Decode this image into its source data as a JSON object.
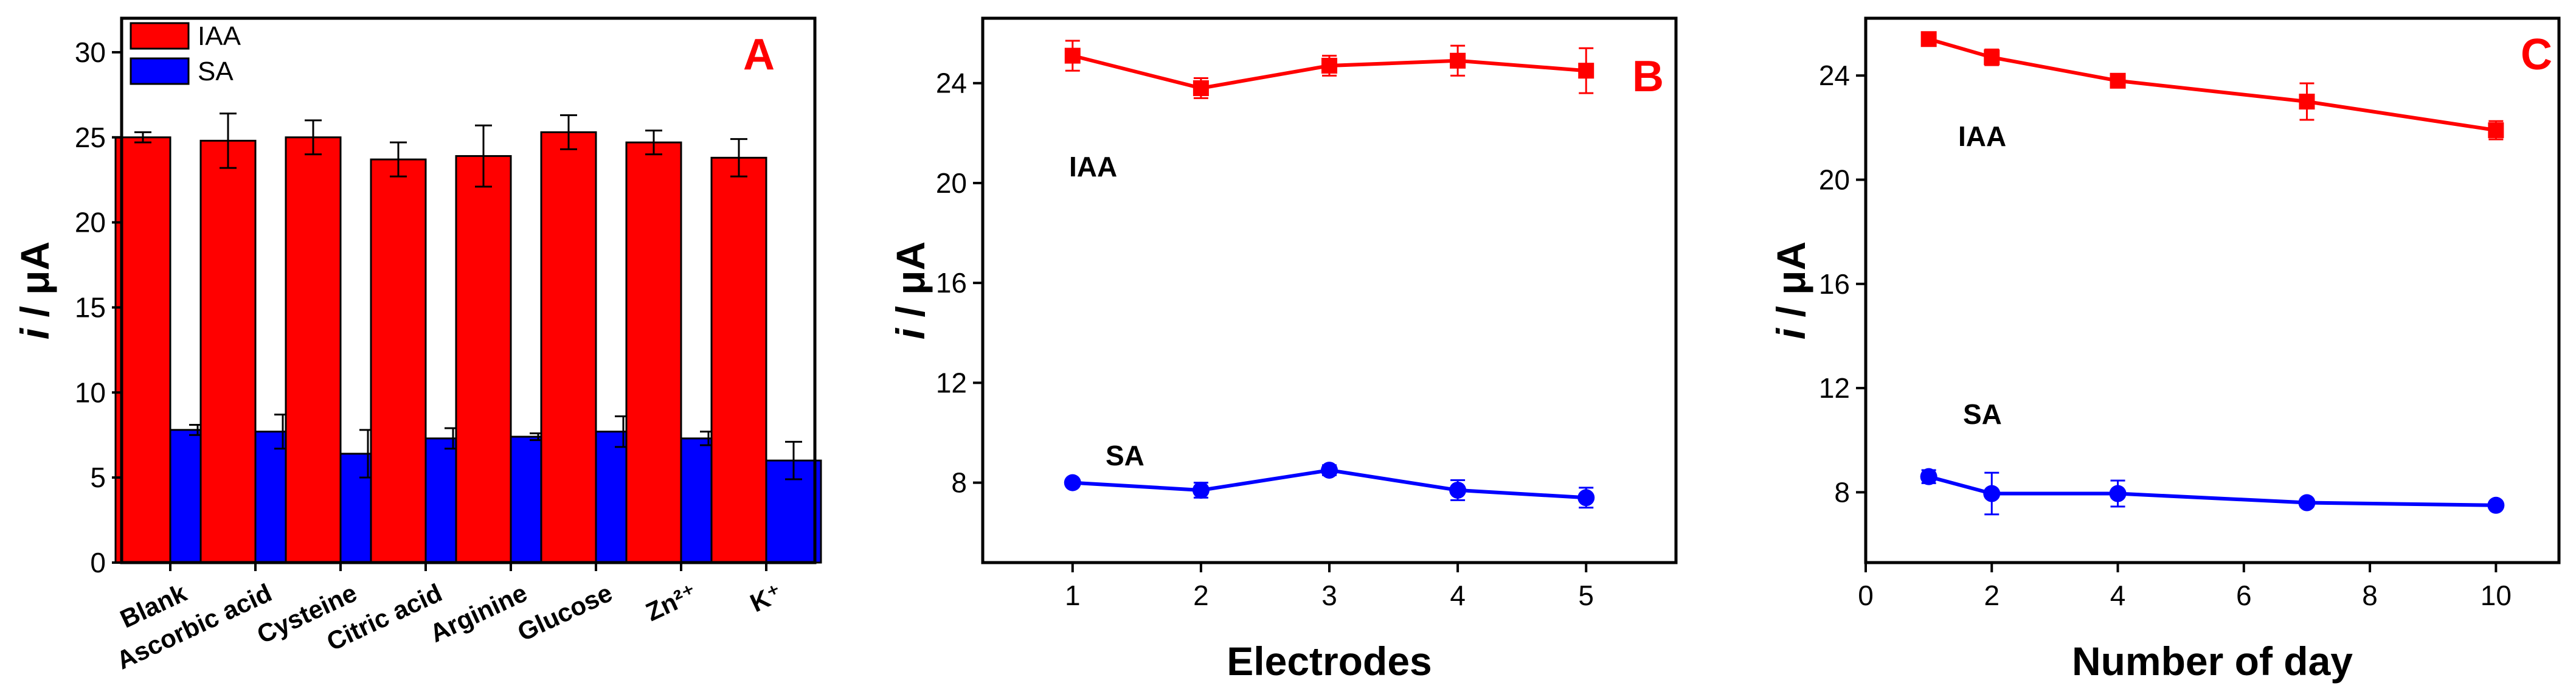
{
  "chart_data": [
    {
      "type": "bar",
      "panel": "A",
      "categories": [
        "Blank",
        "Ascorbic acid",
        "Cysteine",
        "Citric acid",
        "Arginine",
        "Glucose",
        "Zn²⁺",
        "K⁺"
      ],
      "series": [
        {
          "name": "IAA",
          "color": "#ff0000",
          "values": [
            25.0,
            24.8,
            25.0,
            23.7,
            23.9,
            25.3,
            24.7,
            23.8
          ],
          "errors": [
            0.3,
            1.6,
            1.0,
            1.0,
            1.8,
            1.0,
            0.7,
            1.1
          ]
        },
        {
          "name": "SA",
          "color": "#0000ff",
          "values": [
            7.8,
            7.7,
            6.4,
            7.3,
            7.4,
            7.7,
            7.3,
            6.0
          ],
          "errors": [
            0.3,
            1.0,
            1.4,
            0.6,
            0.2,
            0.9,
            0.4,
            1.1
          ]
        }
      ],
      "ylabel_italic": "i",
      "ylabel_rest": " / μA",
      "xlabel": "",
      "ylim": [
        0,
        32
      ],
      "yticks": [
        0,
        5,
        10,
        15,
        20,
        25,
        30
      ],
      "legend_position": "top-left"
    },
    {
      "type": "line",
      "panel": "B",
      "x": [
        1,
        2,
        3,
        4,
        5
      ],
      "series": [
        {
          "name": "IAA",
          "color": "#ff0000",
          "marker": "square",
          "values": [
            25.1,
            23.8,
            24.7,
            24.9,
            24.5
          ],
          "errors": [
            0.6,
            0.4,
            0.4,
            0.6,
            0.9
          ]
        },
        {
          "name": "SA",
          "color": "#0000ff",
          "marker": "circle",
          "values": [
            8.0,
            7.7,
            8.5,
            7.7,
            7.4
          ],
          "errors": [
            0.1,
            0.3,
            0.2,
            0.4,
            0.4
          ]
        }
      ],
      "xlabel": "Electrodes",
      "ylabel_italic": "i",
      "ylabel_rest": " / μA",
      "xlim": [
        0.3,
        5.7
      ],
      "ylim": [
        4.8,
        26.6
      ],
      "xticks": [
        1,
        2,
        3,
        4,
        5
      ],
      "yticks": [
        8,
        12,
        16,
        20,
        24
      ],
      "annotations": [
        "IAA",
        "SA"
      ]
    },
    {
      "type": "line",
      "panel": "C",
      "x": [
        1,
        2,
        4,
        7,
        10
      ],
      "series": [
        {
          "name": "IAA",
          "color": "#ff0000",
          "marker": "square",
          "values": [
            25.4,
            24.7,
            23.8,
            23.0,
            21.9
          ],
          "errors": [
            0.1,
            0.3,
            0.1,
            0.7,
            0.35
          ]
        },
        {
          "name": "SA",
          "color": "#0000ff",
          "marker": "circle",
          "values": [
            8.6,
            7.95,
            7.95,
            7.6,
            7.5
          ],
          "errors": [
            0.25,
            0.8,
            0.5,
            0.15,
            0.1
          ]
        }
      ],
      "xlabel": "Number of day",
      "ylabel_italic": "i",
      "ylabel_rest": " / μA",
      "xlim": [
        0,
        11
      ],
      "ylim": [
        5.3,
        26.2
      ],
      "xticks": [
        0,
        2,
        4,
        6,
        8,
        10
      ],
      "yticks": [
        8,
        12,
        16,
        20,
        24
      ],
      "annotations": [
        "IAA",
        "SA"
      ]
    }
  ]
}
